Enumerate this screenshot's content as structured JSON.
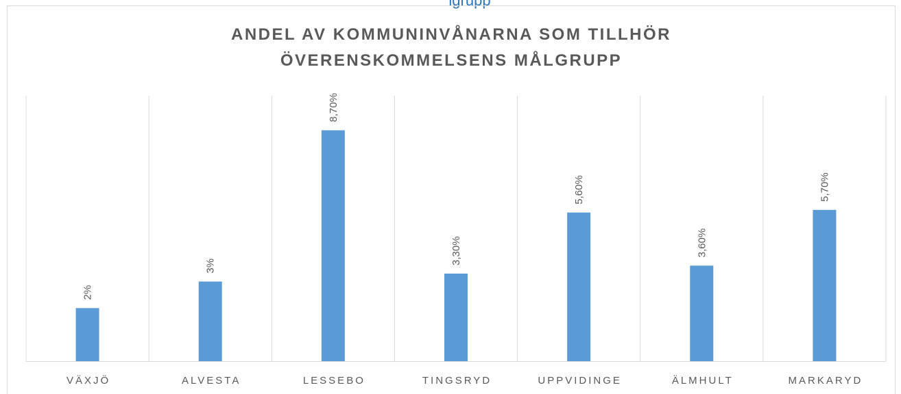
{
  "header_fragment": "lgrupp",
  "chart_data": {
    "type": "bar",
    "title": [
      "ANDEL AV KOMMUNINVÅNARNA SOM TILLHÖR",
      "ÖVERENSKOMMELSENS MÅLGRUPP"
    ],
    "categories": [
      "VÄXJÖ",
      "ALVESTA",
      "LESSEBO",
      "TINGSRYD",
      "UPPVIDINGE",
      "ÄLMHULT",
      "MARKARYD"
    ],
    "values": [
      2,
      3,
      8.7,
      3.3,
      5.6,
      3.6,
      5.7
    ],
    "value_labels": [
      "2%",
      "3%",
      "8,70%",
      "3,30%",
      "5,60%",
      "3,60%",
      "5,70%"
    ],
    "color": "#5b9bd5",
    "ylim": [
      0,
      10
    ]
  }
}
